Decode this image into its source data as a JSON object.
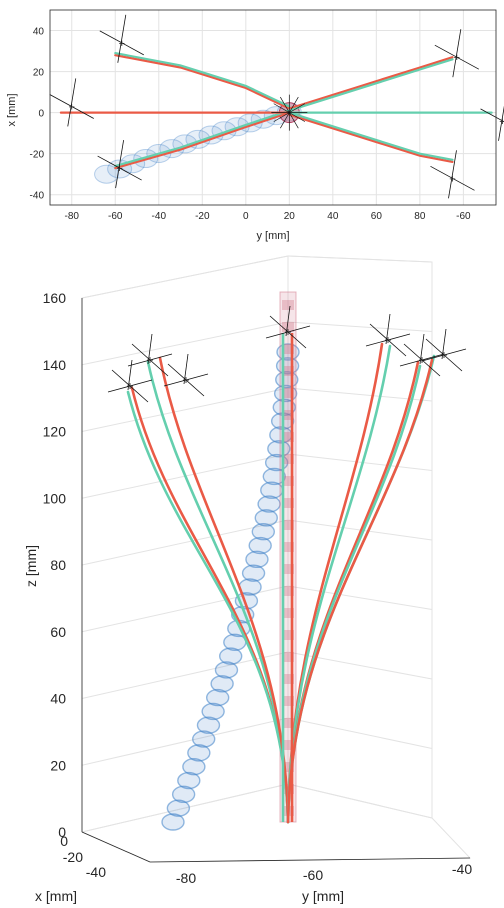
{
  "colors": {
    "red": "#ea5a46",
    "teal": "#64cfae",
    "blue": "#3c7fc7",
    "pink": "#cf6f85",
    "grid": "#e3e3e3",
    "axis": "#262626"
  },
  "chart_data": [
    {
      "type": "line",
      "view": "top",
      "xlabel": "y [mm]",
      "ylabel": "x [mm]",
      "x_ticks": [
        "-80",
        "-60",
        "-40",
        "-20",
        "0",
        "20",
        "40",
        "60",
        "80",
        "-60"
      ],
      "y_ticks": [
        "40",
        "20",
        "0",
        "-20",
        "-40"
      ],
      "xlim": [
        -90,
        115
      ],
      "ylim": [
        -45,
        50
      ],
      "grid": true,
      "series": [
        {
          "color": "red",
          "points": [
            [
              -60,
              28
            ],
            [
              -30,
              22
            ],
            [
              0,
              12
            ],
            [
              20,
              2
            ]
          ]
        },
        {
          "color": "teal",
          "points": [
            [
              -60,
              29
            ],
            [
              -30,
              23
            ],
            [
              0,
              13
            ],
            [
              20,
              3
            ]
          ]
        },
        {
          "color": "red",
          "points": [
            [
              -60,
              -27
            ],
            [
              -30,
              -18
            ],
            [
              0,
              -7
            ],
            [
              20,
              0
            ]
          ]
        },
        {
          "color": "teal",
          "points": [
            [
              -60,
              -26
            ],
            [
              -30,
              -17
            ],
            [
              0,
              -6
            ],
            [
              20,
              1
            ]
          ]
        },
        {
          "color": "red",
          "points": [
            [
              20,
              2
            ],
            [
              50,
              12
            ],
            [
              80,
              22
            ],
            [
              95,
              27
            ]
          ]
        },
        {
          "color": "teal",
          "points": [
            [
              20,
              1
            ],
            [
              50,
              11
            ],
            [
              80,
              21
            ],
            [
              95,
              26
            ]
          ]
        },
        {
          "color": "red",
          "points": [
            [
              20,
              -1
            ],
            [
              50,
              -11
            ],
            [
              80,
              -21
            ],
            [
              95,
              -24
            ]
          ]
        },
        {
          "color": "teal",
          "points": [
            [
              20,
              0
            ],
            [
              50,
              -10
            ],
            [
              80,
              -20
            ],
            [
              95,
              -23
            ]
          ]
        },
        {
          "color": "red",
          "points": [
            [
              -85,
              0
            ],
            [
              20,
              0
            ]
          ]
        },
        {
          "color": "teal",
          "points": [
            [
              20,
              0
            ],
            [
              113,
              0
            ]
          ]
        }
      ],
      "markers": [
        [
          -57,
          34
        ],
        [
          -80,
          3
        ],
        [
          -58,
          -27
        ],
        [
          97,
          27
        ],
        [
          95,
          -32
        ],
        [
          118,
          -4
        ]
      ]
    },
    {
      "type": "line",
      "view": "3d",
      "zlabel": "z [mm]",
      "xlabel": "x [mm]",
      "ylabel": "y [mm]",
      "z_ticks": [
        "160",
        "140",
        "120",
        "100",
        "80",
        "60",
        "40",
        "20",
        "0"
      ],
      "x_ticks": [
        "0",
        "-20",
        "-40"
      ],
      "y_ticks": [
        "-80",
        "-60",
        "-40"
      ],
      "zlim": [
        0,
        160
      ],
      "grid": true
    }
  ]
}
